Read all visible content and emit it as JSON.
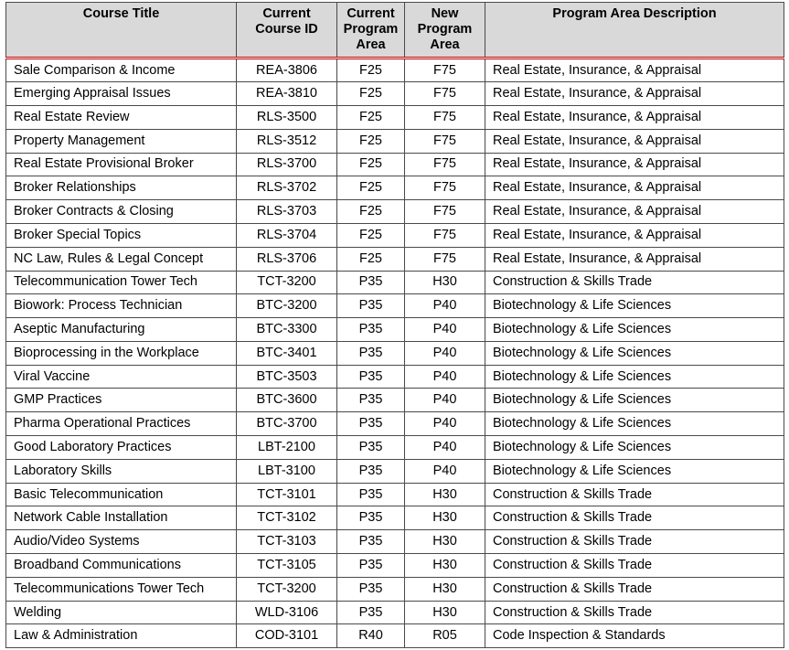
{
  "colors": {
    "header_bg": "#D9D9D9",
    "header_rule": "#C00000",
    "grid_border": "#4a4a4a"
  },
  "table": {
    "headers": [
      "Course Title",
      "Current Course ID",
      "Current Program Area",
      "New Program Area",
      "Program Area Description"
    ],
    "rows": [
      [
        "Sale Comparison & Income",
        "REA-3806",
        "F25",
        "F75",
        "Real Estate, Insurance, & Appraisal"
      ],
      [
        "Emerging Appraisal Issues",
        "REA-3810",
        "F25",
        "F75",
        "Real Estate, Insurance, & Appraisal"
      ],
      [
        "Real Estate Review",
        "RLS-3500",
        "F25",
        "F75",
        "Real Estate, Insurance, & Appraisal"
      ],
      [
        "Property Management",
        "RLS-3512",
        "F25",
        "F75",
        "Real Estate, Insurance, & Appraisal"
      ],
      [
        "Real Estate Provisional Broker",
        "RLS-3700",
        "F25",
        "F75",
        "Real Estate, Insurance, & Appraisal"
      ],
      [
        "Broker Relationships",
        "RLS-3702",
        "F25",
        "F75",
        "Real Estate, Insurance, & Appraisal"
      ],
      [
        "Broker Contracts & Closing",
        "RLS-3703",
        "F25",
        "F75",
        "Real Estate, Insurance, & Appraisal"
      ],
      [
        "Broker Special Topics",
        "RLS-3704",
        "F25",
        "F75",
        "Real Estate, Insurance, & Appraisal"
      ],
      [
        "NC Law, Rules & Legal Concept",
        "RLS-3706",
        "F25",
        "F75",
        "Real Estate, Insurance, & Appraisal"
      ],
      [
        "Telecommunication Tower Tech",
        "TCT-3200",
        "P35",
        "H30",
        "Construction & Skills Trade"
      ],
      [
        "Biowork: Process Technician",
        "BTC-3200",
        "P35",
        "P40",
        "Biotechnology & Life Sciences"
      ],
      [
        "Aseptic Manufacturing",
        "BTC-3300",
        "P35",
        "P40",
        "Biotechnology & Life Sciences"
      ],
      [
        "Bioprocessing in the Workplace",
        "BTC-3401",
        "P35",
        "P40",
        "Biotechnology & Life Sciences"
      ],
      [
        "Viral Vaccine",
        "BTC-3503",
        "P35",
        "P40",
        "Biotechnology & Life Sciences"
      ],
      [
        "GMP Practices",
        "BTC-3600",
        "P35",
        "P40",
        "Biotechnology & Life Sciences"
      ],
      [
        "Pharma Operational Practices",
        "BTC-3700",
        "P35",
        "P40",
        "Biotechnology & Life Sciences"
      ],
      [
        "Good Laboratory Practices",
        "LBT-2100",
        "P35",
        "P40",
        "Biotechnology & Life Sciences"
      ],
      [
        "Laboratory Skills",
        "LBT-3100",
        "P35",
        "P40",
        "Biotechnology & Life Sciences"
      ],
      [
        "Basic Telecommunication",
        "TCT-3101",
        "P35",
        "H30",
        "Construction & Skills Trade"
      ],
      [
        "Network Cable Installation",
        "TCT-3102",
        "P35",
        "H30",
        "Construction & Skills Trade"
      ],
      [
        "Audio/Video Systems",
        "TCT-3103",
        "P35",
        "H30",
        "Construction & Skills Trade"
      ],
      [
        "Broadband Communications",
        "TCT-3105",
        "P35",
        "H30",
        "Construction & Skills Trade"
      ],
      [
        "Telecommunications Tower Tech",
        "TCT-3200",
        "P35",
        "H30",
        "Construction & Skills Trade"
      ],
      [
        "Welding",
        "WLD-3106",
        "P35",
        "H30",
        "Construction & Skills Trade"
      ],
      [
        "Law & Administration",
        "COD-3101",
        "R40",
        "R05",
        "Code Inspection & Standards"
      ]
    ],
    "cell_names": [
      "cell-course-title",
      "cell-course-id",
      "cell-current-program-area",
      "cell-new-program-area",
      "cell-program-area-description"
    ]
  }
}
